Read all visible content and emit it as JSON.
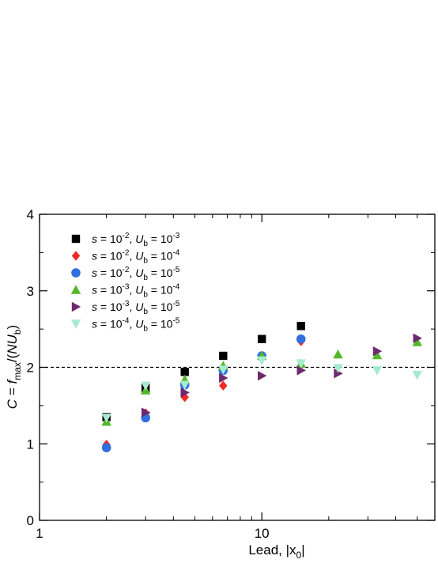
{
  "chart_data": {
    "type": "scatter",
    "x_scale": "log",
    "xlim": [
      1,
      60
    ],
    "ylim": [
      0,
      4
    ],
    "x_ticks": [
      1,
      10
    ],
    "y_ticks": [
      0,
      1,
      2,
      3,
      4
    ],
    "xlabel": "Lead, |x0|",
    "ylabel": "C = fmax/(NUb)",
    "grid": false,
    "legend_position": "upper-left",
    "reference_line": {
      "y": 2,
      "style": "dashed",
      "color": "#000000"
    },
    "series": [
      {
        "name": "s = 10^-2, Ub = 10^-3",
        "marker": "square",
        "color": "#000000",
        "points": [
          [
            2,
            1.35
          ],
          [
            3,
            1.73
          ],
          [
            4.5,
            1.94
          ],
          [
            6.7,
            2.15
          ],
          [
            10,
            2.37
          ],
          [
            15,
            2.54
          ]
        ]
      },
      {
        "name": "s = 10^-2, Ub = 10^-4",
        "marker": "diamond",
        "color": "#ee2a24",
        "points": [
          [
            2,
            0.99
          ],
          [
            3,
            1.4
          ],
          [
            4.5,
            1.61
          ],
          [
            6.7,
            1.76
          ],
          [
            10,
            2.12
          ],
          [
            15,
            2.34
          ]
        ]
      },
      {
        "name": "s = 10^-2, Ub = 10^-5",
        "marker": "circle",
        "color": "#2f6fe0",
        "points": [
          [
            2,
            0.95
          ],
          [
            3,
            1.34
          ],
          [
            4.5,
            1.77
          ],
          [
            6.7,
            1.96
          ],
          [
            10,
            2.15
          ],
          [
            15,
            2.37
          ]
        ]
      },
      {
        "name": "s = 10^-3, Ub = 10^-4",
        "marker": "triangle-up",
        "color": "#52b828",
        "points": [
          [
            2,
            1.29
          ],
          [
            3,
            1.7
          ],
          [
            4.5,
            1.84
          ],
          [
            6.7,
            2.02
          ],
          [
            10,
            2.15
          ],
          [
            15,
            2.05
          ],
          [
            22,
            2.17
          ],
          [
            33,
            2.16
          ],
          [
            50,
            2.33
          ]
        ]
      },
      {
        "name": "s = 10^-3, Ub = 10^-5",
        "marker": "triangle-right",
        "color": "#6e2a6e",
        "points": [
          [
            3,
            1.41
          ],
          [
            4.5,
            1.67
          ],
          [
            6.7,
            1.86
          ],
          [
            10,
            1.89
          ],
          [
            15,
            1.96
          ],
          [
            22,
            1.92
          ],
          [
            33,
            2.21
          ],
          [
            50,
            2.38
          ]
        ]
      },
      {
        "name": "s = 10^-4, Ub = 10^-5",
        "marker": "triangle-down",
        "color": "#a8ead0",
        "points": [
          [
            2,
            1.34
          ],
          [
            3,
            1.76
          ],
          [
            4.5,
            1.77
          ],
          [
            6.7,
            1.97
          ],
          [
            10,
            2.09
          ],
          [
            15,
            2.05
          ],
          [
            22,
            1.99
          ],
          [
            33,
            1.96
          ],
          [
            50,
            1.9
          ]
        ]
      }
    ],
    "legend": [
      {
        "s": "10",
        "s_exp": "-2",
        "u": "10",
        "u_exp": "-3"
      },
      {
        "s": "10",
        "s_exp": "-2",
        "u": "10",
        "u_exp": "-4"
      },
      {
        "s": "10",
        "s_exp": "-2",
        "u": "10",
        "u_exp": "-5"
      },
      {
        "s": "10",
        "s_exp": "-3",
        "u": "10",
        "u_exp": "-4"
      },
      {
        "s": "10",
        "s_exp": "-3",
        "u": "10",
        "u_exp": "-5"
      },
      {
        "s": "10",
        "s_exp": "-4",
        "u": "10",
        "u_exp": "-5"
      }
    ],
    "text": {
      "xlabel_main": "Lead, |x",
      "xlabel_sub": "0",
      "xlabel_end": "|",
      "ylabel_C": "C",
      "ylabel_eq": " = ",
      "ylabel_f": "f",
      "ylabel_fsub": "max",
      "ylabel_mid": "/(",
      "ylabel_NU": "NU",
      "ylabel_bsub": "b",
      "ylabel_end": ")",
      "legend_s": "s",
      "legend_eq1": " = ",
      "legend_sep": ", ",
      "legend_U": "U",
      "legend_Usub": "b",
      "legend_eq2": " = "
    }
  }
}
